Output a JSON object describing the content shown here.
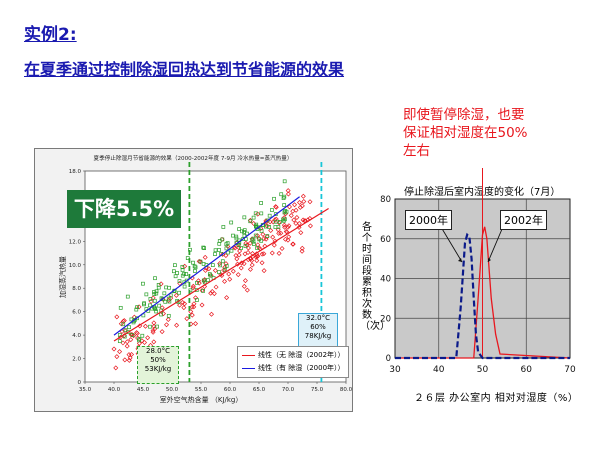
{
  "slide": {
    "heading": "实例2:",
    "subheading": "在夏季通过控制除湿回热达到节省能源的效果"
  },
  "left_chart": {
    "title": "夏季停止除湿月节省能源的效果（2000-2002年度 7-9月 冷水热量=蒸汽热量）",
    "badge": "下降5.5%",
    "xlabel": "室外空气热含量 （KJ/kg）",
    "ylabel": "加湿蒸汽热量",
    "box_a": [
      "28.0°C",
      "50%",
      "53KJ/kg"
    ],
    "box_b": [
      "32.0°C",
      "60%",
      "78KJ/kg"
    ],
    "legend": [
      "线性（无 除湿（2002年））",
      "线性（有 除湿（2000年））"
    ],
    "colors": {
      "red": "#e8171e",
      "blue": "#1a1ae0",
      "green": "#2ca02c",
      "cyan": "#18c6d8"
    }
  },
  "note": {
    "lines": [
      "即使暂停除湿，也要",
      "保证相对湿度在50%",
      "左右"
    ]
  },
  "chart_data": [
    {
      "type": "scatter",
      "title": "夏季停止除湿月节省能源的效果（2000-2002年度 7-9月 冷水热量=蒸汽热量）",
      "xlabel": "室外空气热含量 （KJ/kg）",
      "ylabel": "加湿蒸汽热量",
      "xlim": [
        35,
        80
      ],
      "ylim": [
        0,
        18
      ],
      "x_ticks": [
        "35.0",
        "40.0",
        "45.0",
        "50.0",
        "55.0",
        "60.0",
        "65.0",
        "70.0",
        "75.0",
        "80.0"
      ],
      "y_ticks": [
        "0",
        "2.0",
        "4.0",
        "6.0",
        "8.0",
        "10.0",
        "12.0",
        "14.0",
        "16.0",
        "18.0"
      ],
      "series": [
        {
          "name": "线性（无 除湿（2002年））",
          "trend": [
            [
              40,
              3.5
            ],
            [
              77,
              14.8
            ]
          ]
        },
        {
          "name": "线性（有 除湿（2000年））",
          "trend": [
            [
              40,
              4.0
            ],
            [
              72,
              15.8
            ]
          ]
        }
      ],
      "reference_lines_x": [
        53,
        78
      ],
      "annotations": [
        "下降5.5%",
        "28.0°C 50% 53KJ/kg",
        "32.0°C 60% 78KJ/kg"
      ]
    },
    {
      "type": "line",
      "title": "停止除湿后室内湿度的变化（7月）",
      "xlabel": "２６层 办公室内 相对对湿度（%）",
      "ylabel": "各个时间段累积次数（次）",
      "xlim": [
        30,
        70
      ],
      "ylim": [
        0,
        80
      ],
      "x_ticks": [
        "30",
        "40",
        "50",
        "60",
        "70"
      ],
      "y_ticks": [
        "0",
        "20",
        "40",
        "60",
        "80"
      ],
      "series": [
        {
          "name": "2000年",
          "x": [
            30,
            44,
            45,
            46,
            46.5,
            47,
            47.5,
            48,
            48.5,
            49,
            50,
            70
          ],
          "values": [
            0,
            0,
            25,
            58,
            62,
            61,
            50,
            30,
            12,
            3,
            0,
            0
          ]
        },
        {
          "name": "2002年",
          "x": [
            30,
            48,
            49,
            50,
            50.5,
            51,
            52,
            53,
            54,
            70
          ],
          "values": [
            0,
            0,
            30,
            62,
            66,
            60,
            30,
            12,
            2,
            0
          ]
        }
      ],
      "reference_lines_x": [
        50
      ]
    }
  ]
}
